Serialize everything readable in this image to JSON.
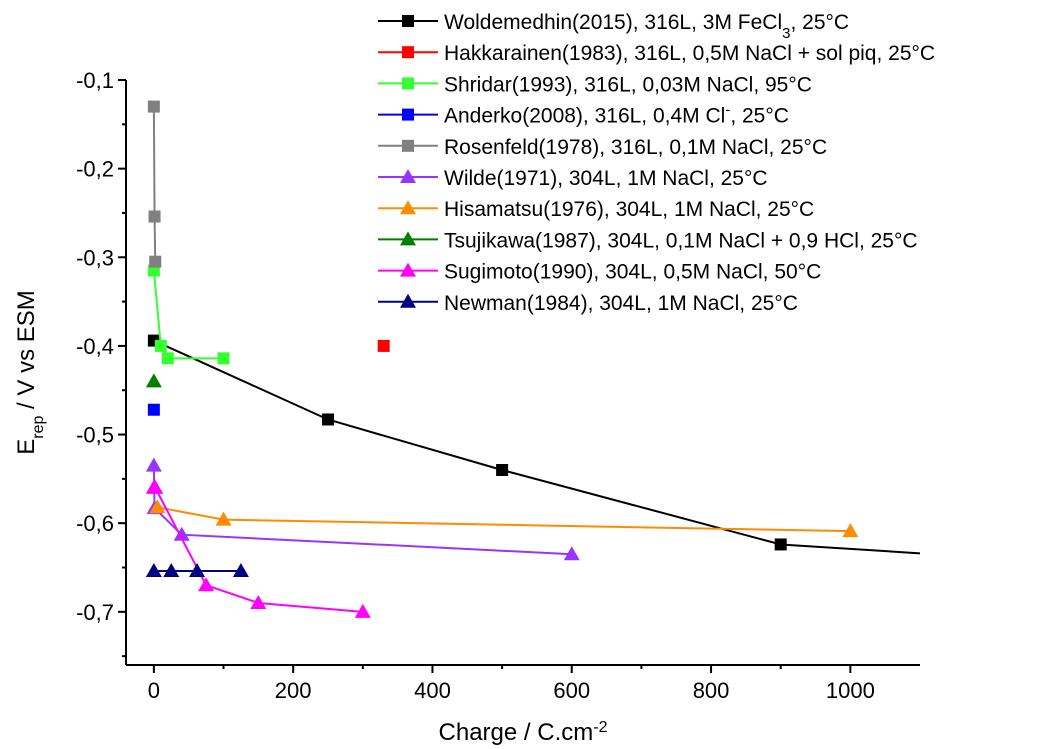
{
  "chart_data": {
    "type": "line",
    "title": "",
    "xlabel": "Charge / C.cm",
    "xlabel_sup": "-2",
    "ylabel_main": "E",
    "ylabel_sub": "rep",
    "ylabel_rest": " / V vs ESM",
    "xlim": [
      -40,
      1100
    ],
    "ylim": [
      -0.76,
      -0.1
    ],
    "xticks": [
      0,
      200,
      400,
      600,
      800,
      1000
    ],
    "xtick_labels": [
      "0",
      "200",
      "400",
      "600",
      "800",
      "1000"
    ],
    "yticks": [
      -0.1,
      -0.2,
      -0.3,
      -0.4,
      -0.5,
      -0.6,
      -0.7
    ],
    "ytick_labels": [
      "-0,1",
      "-0,2",
      "-0,3",
      "-0,4",
      "-0,5",
      "-0,6",
      "-0,7"
    ],
    "grid": false,
    "legend_position": "top-right",
    "series": [
      {
        "name": "Woldemedhin(2015), 316L, 3M FeCl3, 25°C",
        "legend_parts": [
          [
            "Woldemedhin(2015), 316L, 3M FeCl",
            ""
          ],
          [
            "3",
            "sub"
          ],
          [
            ", 25°C",
            ""
          ]
        ],
        "marker": "square",
        "color": "#000000",
        "x": [
          0,
          250,
          500,
          900
        ],
        "y": [
          -0.394,
          -0.483,
          -0.54,
          -0.624
        ],
        "extension": {
          "x": 1100,
          "y": -0.634
        }
      },
      {
        "name": "Hakkarainen(1983), 316L, 0,5M NaCl + sol piq, 25°C",
        "marker": "square",
        "color": "#ff0000",
        "x": [
          330
        ],
        "y": [
          -0.4
        ]
      },
      {
        "name": "Shridar(1993), 316L, 0,03M NaCl, 95°C",
        "marker": "square",
        "color": "#33ff33",
        "x": [
          0,
          10,
          20,
          100
        ],
        "y": [
          -0.315,
          -0.4,
          -0.414,
          -0.414
        ]
      },
      {
        "name": "Anderko(2008), 316L, 0,4M Cl-, 25°C",
        "legend_parts": [
          [
            "Anderko(2008), 316L, 0,4M Cl",
            ""
          ],
          [
            "-",
            "sup"
          ],
          [
            ", 25°C",
            ""
          ]
        ],
        "marker": "square",
        "color": "#0000ff",
        "x": [
          0
        ],
        "y": [
          -0.472
        ]
      },
      {
        "name": "Rosenfeld(1978), 316L, 0,1M NaCl, 25°C",
        "marker": "square",
        "color": "#808080",
        "x": [
          0,
          1,
          2
        ],
        "y": [
          -0.13,
          -0.254,
          -0.305
        ]
      },
      {
        "name": "Wilde(1971), 304L, 1M NaCl, 25°C",
        "marker": "triangle",
        "color": "#9933ff",
        "x": [
          0,
          1,
          40,
          600
        ],
        "y": [
          -0.535,
          -0.583,
          -0.613,
          -0.635
        ]
      },
      {
        "name": "Hisamatsu(1976), 304L, 1M NaCl, 25°C",
        "marker": "triangle",
        "color": "#ff8c00",
        "x": [
          5,
          100,
          1000
        ],
        "y": [
          -0.582,
          -0.596,
          -0.609
        ]
      },
      {
        "name": "Tsujikawa(1987), 304L, 0,1M NaCl + 0,9 HCl, 25°C",
        "marker": "triangle",
        "color": "#008000",
        "x": [
          0
        ],
        "y": [
          -0.44
        ]
      },
      {
        "name": "Sugimoto(1990), 304L, 0,5M NaCl, 50°C",
        "marker": "triangle",
        "color": "#ff00ff",
        "x": [
          0,
          2,
          75,
          150,
          300
        ],
        "y": [
          -0.56,
          -0.56,
          -0.67,
          -0.69,
          -0.7
        ]
      },
      {
        "name": "Newman(1984), 304L, 1M NaCl, 25°C",
        "marker": "triangle",
        "color": "#000080",
        "x": [
          0,
          25,
          62,
          125
        ],
        "y": [
          -0.654,
          -0.654,
          -0.654,
          -0.654
        ]
      }
    ]
  }
}
